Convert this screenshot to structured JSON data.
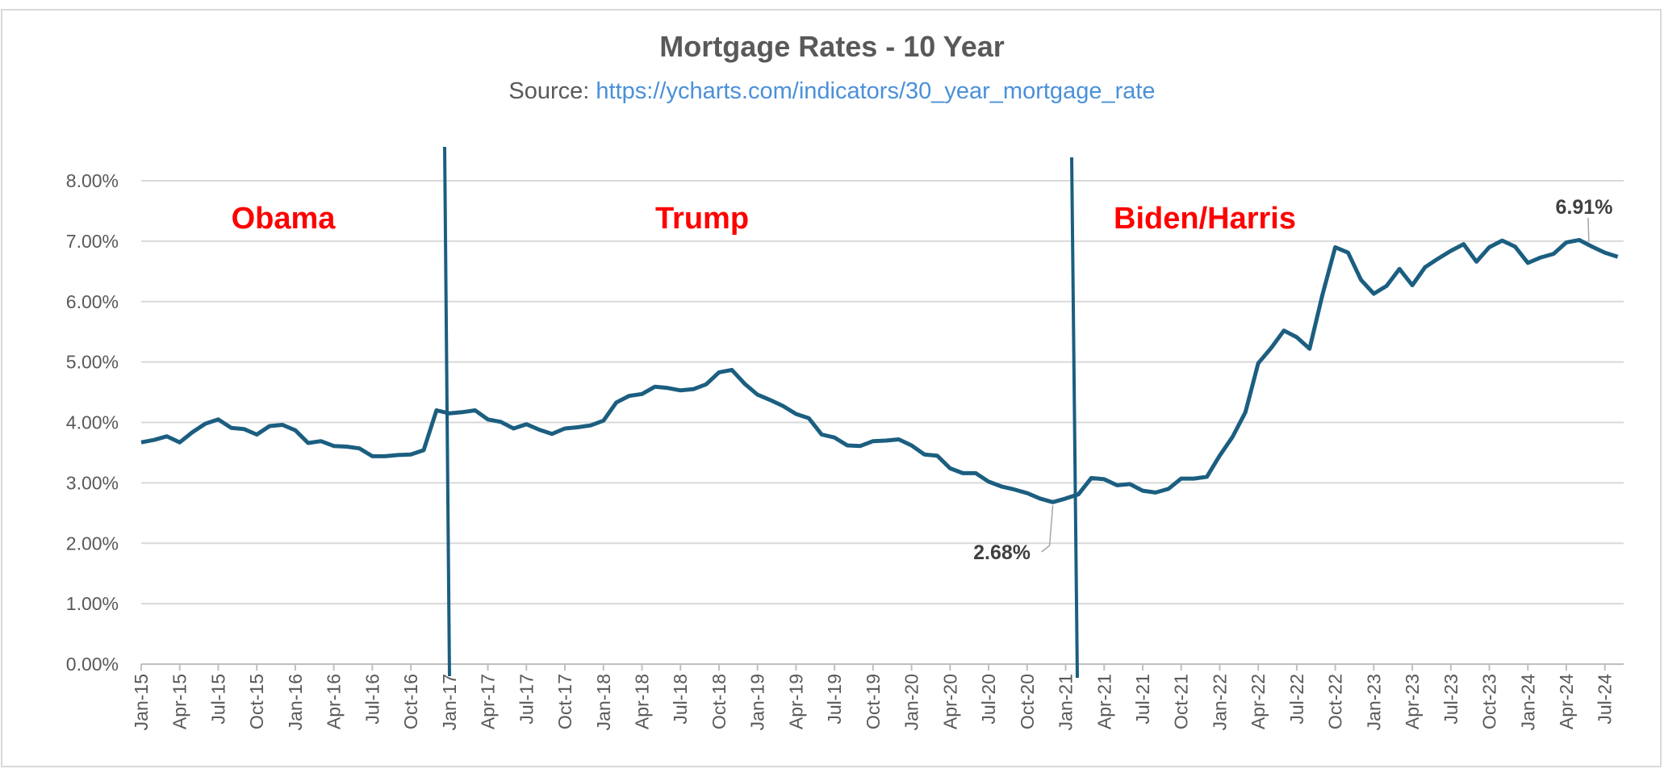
{
  "chart_data": {
    "type": "line",
    "title": "Mortgage Rates - 10 Year",
    "subtitle_prefix": "Source: ",
    "subtitle_link": "https://ycharts.com/indicators/30_year_mortgage_rate",
    "xlabel": "",
    "ylabel": "",
    "ylim": [
      0,
      8
    ],
    "yticks": [
      "0.00%",
      "1.00%",
      "2.00%",
      "3.00%",
      "4.00%",
      "5.00%",
      "6.00%",
      "7.00%",
      "8.00%"
    ],
    "xticks": [
      "Jan-15",
      "Apr-15",
      "Jul-15",
      "Oct-15",
      "Jan-16",
      "Apr-16",
      "Jul-16",
      "Oct-16",
      "Jan-17",
      "Apr-17",
      "Jul-17",
      "Oct-17",
      "Jan-18",
      "Apr-18",
      "Jul-18",
      "Oct-18",
      "Jan-19",
      "Apr-19",
      "Jul-19",
      "Oct-19",
      "Jan-20",
      "Apr-20",
      "Jul-20",
      "Oct-20",
      "Jan-21",
      "Apr-21",
      "Jul-21",
      "Oct-21",
      "Jan-22",
      "Apr-22",
      "Jul-22",
      "Oct-22",
      "Jan-23",
      "Apr-23",
      "Jul-23",
      "Oct-23",
      "Jan-24",
      "Apr-24",
      "Jul-24"
    ],
    "x_start": "Jan-15",
    "x_end": "Aug-24",
    "grid": true,
    "line_color": "#1b5e80",
    "values": [
      3.67,
      3.71,
      3.77,
      3.67,
      3.84,
      3.98,
      4.05,
      3.91,
      3.89,
      3.8,
      3.94,
      3.96,
      3.87,
      3.66,
      3.69,
      3.61,
      3.6,
      3.57,
      3.44,
      3.44,
      3.46,
      3.47,
      3.54,
      4.2,
      4.15,
      4.17,
      4.2,
      4.05,
      4.01,
      3.9,
      3.97,
      3.88,
      3.81,
      3.9,
      3.92,
      3.95,
      4.03,
      4.33,
      4.44,
      4.47,
      4.59,
      4.57,
      4.53,
      4.55,
      4.63,
      4.83,
      4.87,
      4.64,
      4.46,
      4.37,
      4.27,
      4.14,
      4.07,
      3.8,
      3.75,
      3.62,
      3.61,
      3.69,
      3.7,
      3.72,
      3.62,
      3.47,
      3.45,
      3.24,
      3.16,
      3.16,
      3.02,
      2.94,
      2.89,
      2.83,
      2.74,
      2.68,
      2.74,
      2.81,
      3.08,
      3.06,
      2.96,
      2.98,
      2.87,
      2.84,
      2.9,
      3.07,
      3.07,
      3.1,
      3.45,
      3.76,
      4.17,
      4.98,
      5.23,
      5.52,
      5.41,
      5.22,
      6.11,
      6.9,
      6.81,
      6.36,
      6.13,
      6.26,
      6.54,
      6.27,
      6.57,
      6.71,
      6.84,
      6.95,
      6.66,
      6.9,
      7.01,
      6.91,
      6.64,
      6.73,
      6.79,
      6.98,
      7.02,
      6.91,
      6.81,
      6.74
    ],
    "annotations": [
      {
        "label": "2.68%",
        "x": "Dec-20",
        "value": 2.68
      },
      {
        "label": "6.91%",
        "x": "Jun-24",
        "value": 6.91
      }
    ],
    "eras": [
      {
        "label": "Obama",
        "color": "#ff0000"
      },
      {
        "label": "Trump",
        "color": "#ff0000"
      },
      {
        "label": "Biden/Harris",
        "color": "#ff0000"
      }
    ],
    "era_dividers": [
      "Jan-17",
      "Jan-21"
    ]
  }
}
